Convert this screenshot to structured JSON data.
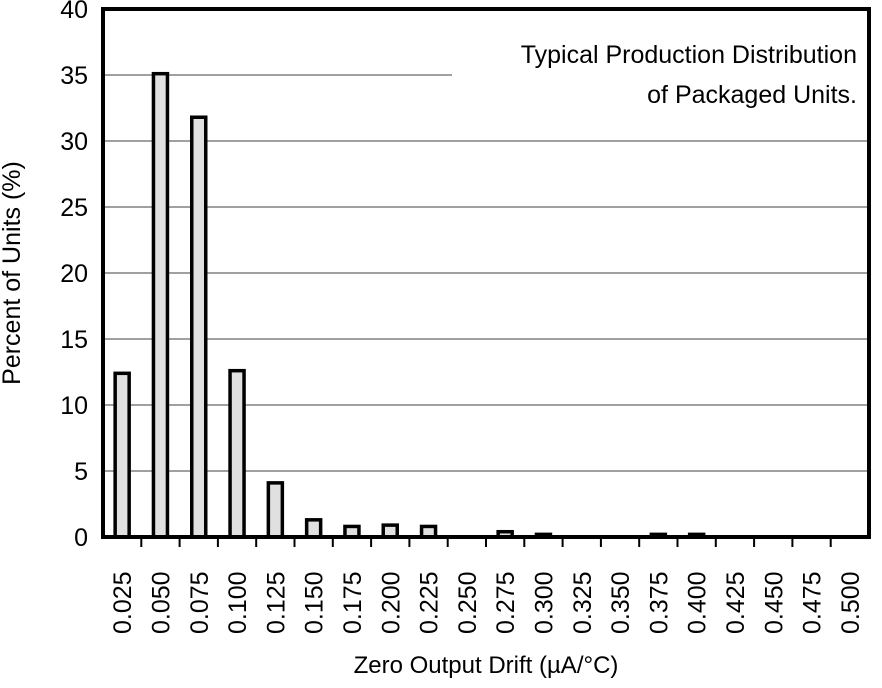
{
  "chart_data": {
    "type": "bar",
    "title": "",
    "annotation": [
      "Typical Production Distribution",
      "of Packaged Units."
    ],
    "xlabel": "Zero Output Drift (µA/°C)",
    "ylabel": "Percent of Units (%)",
    "ylim": [
      0,
      40
    ],
    "yticks": [
      0,
      5,
      10,
      15,
      20,
      25,
      30,
      35,
      40
    ],
    "grid": true,
    "legend": null,
    "categories": [
      "0.025",
      "0.050",
      "0.075",
      "0.100",
      "0.125",
      "0.150",
      "0.175",
      "0.200",
      "0.225",
      "0.250",
      "0.275",
      "0.300",
      "0.325",
      "0.350",
      "0.375",
      "0.400",
      "0.425",
      "0.450",
      "0.475",
      "0.500"
    ],
    "values": [
      12.4,
      35.1,
      31.8,
      12.6,
      4.1,
      1.3,
      0.8,
      0.9,
      0.8,
      0,
      0.4,
      0.2,
      0,
      0,
      0.2,
      0.2,
      0,
      0,
      0,
      0
    ],
    "colors": {
      "bar_fill": "#e0e0e0",
      "bar_edge": "#000000",
      "grid": "#808080",
      "frame": "#000000"
    }
  }
}
